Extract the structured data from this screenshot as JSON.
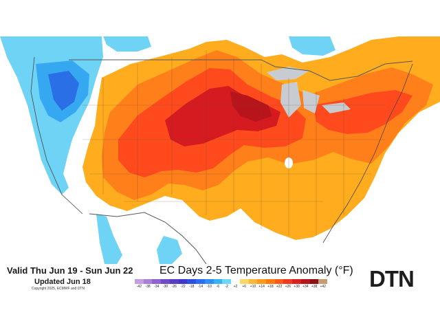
{
  "map": {
    "valid_range": "Valid Thu Jun 19 - Sun Jun 22",
    "updated": "Updated Jun 18",
    "copyright": "Copyright 2025, ECMWF and DTN",
    "title": "EC Days 2-5 Temperature Anomaly (°F)",
    "logo": "DTN"
  },
  "legend": {
    "labels": [
      "-42",
      "-38",
      "-34",
      "-30",
      "-26",
      "-22",
      "-18",
      "-14",
      "-10",
      "-6",
      "-2",
      "+2",
      "+6",
      "+10",
      "+14",
      "+18",
      "+22",
      "+26",
      "+30",
      "+34",
      "+38",
      "+42"
    ],
    "colors": [
      "#c39ee0",
      "#a97fd8",
      "#8c63d0",
      "#6f4ac6",
      "#5a3dc0",
      "#3f37c9",
      "#2c4fe0",
      "#2d6ef0",
      "#2f8ff2",
      "#39b3f0",
      "#6fd6f3",
      "#ffffff",
      "#ffd66a",
      "#ffb83a",
      "#ff9a1e",
      "#ff7a12",
      "#ff5a1a",
      "#f03a1e",
      "#d82222",
      "#b8141c",
      "#8c1016",
      "#c59c72"
    ]
  },
  "colors": {
    "warm_light": "#ffad1f",
    "warm_mid": "#ff7f1a",
    "warm_strong": "#ff4a1e",
    "warm_extreme": "#d51b1f",
    "cool_light": "#6ed3f5",
    "cool_mid": "#36a8f2",
    "cool_strong": "#2b6fe6",
    "border": "#555555"
  }
}
